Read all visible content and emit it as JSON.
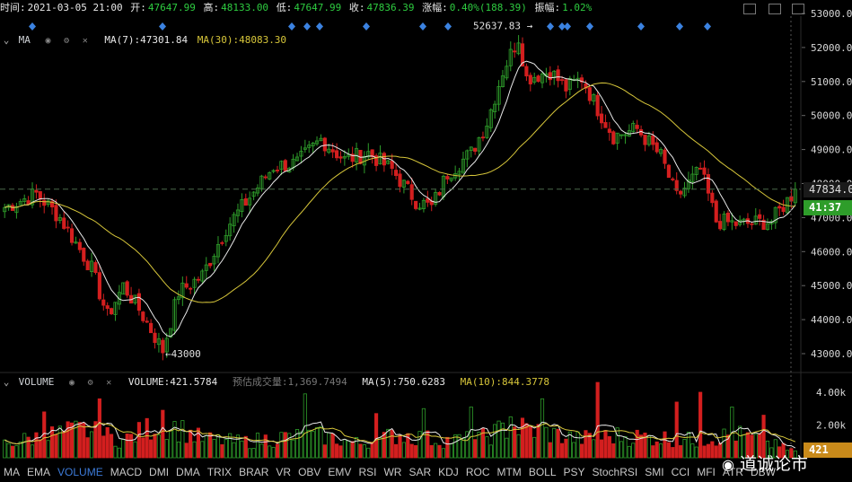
{
  "info": {
    "time_label": "时间:",
    "time": "2021-03-05 21:00",
    "open_label": "开:",
    "open": "47647.99",
    "high_label": "高:",
    "high": "48133.00",
    "low_label": "低:",
    "low": "47647.99",
    "close_label": "收:",
    "close": "47836.39",
    "change_label": "涨幅:",
    "change": "0.40%(188.39)",
    "amplitude_label": "振幅:",
    "amplitude": "1.02%"
  },
  "main_indicator": {
    "name": "MA",
    "ma7_label": "MA(7):47301.84",
    "ma30_label": "MA(30):48083.30"
  },
  "volume_indicator": {
    "name": "VOLUME",
    "value_label": "VOLUME:421.5784",
    "est_label": "预估成交量:1,369.7494",
    "ma5_label": "MA(5):750.6283",
    "ma10_label": "MA(10):844.3778"
  },
  "price_axis": [
    "53000.00",
    "52000.00",
    "51000.00",
    "50000.00",
    "49000.00",
    "48000.00",
    "47000.00",
    "46000.00",
    "45000.00",
    "44000.00",
    "43000.00"
  ],
  "current_price_label": "47834.0",
  "countdown_label": "41:37",
  "volume_axis": [
    "4.00k",
    "2.00k"
  ],
  "current_volume_label": "421",
  "annotations": {
    "high": "52637.83 →",
    "low": "←43000"
  },
  "tabs": [
    "MA",
    "EMA",
    "VOLUME",
    "MACD",
    "DMI",
    "DMA",
    "TRIX",
    "BRAR",
    "VR",
    "OBV",
    "EMV",
    "RSI",
    "WR",
    "SAR",
    "KDJ",
    "ROC",
    "MTM",
    "BOLL",
    "PSY",
    "StochRSI",
    "SMI",
    "CCI",
    "MFI",
    "ATR",
    "DBW"
  ],
  "active_tab": "VOLUME",
  "watermark": "道诚论市",
  "colors": {
    "up": "#2e9d2a",
    "down": "#d31f1f",
    "ma7": "#e8e8e8",
    "ma30": "#d7c63a",
    "ma5": "#e8e8e8",
    "ma10": "#d7c63a",
    "accent": "#3d7bd9",
    "price_badge": "#2e9d2a",
    "vol_badge": "#c98a1a"
  },
  "chart_data": {
    "type": "candlestick",
    "title": "",
    "ylim": [
      42800,
      53300
    ],
    "price_ticks": [
      53000,
      52000,
      51000,
      50000,
      49000,
      48000,
      47000,
      46000,
      45000,
      44000,
      43000
    ],
    "high_marker": 52637.83,
    "low_marker": 43000,
    "last_price": 47834,
    "price_anchors": [
      [
        0,
        47300
      ],
      [
        8,
        47700
      ],
      [
        14,
        47000
      ],
      [
        22,
        45500
      ],
      [
        26,
        44100
      ],
      [
        30,
        45000
      ],
      [
        34,
        44300
      ],
      [
        40,
        43100
      ],
      [
        44,
        44800
      ],
      [
        50,
        45300
      ],
      [
        56,
        46700
      ],
      [
        62,
        47600
      ],
      [
        68,
        48500
      ],
      [
        74,
        48600
      ],
      [
        80,
        49300
      ],
      [
        86,
        48700
      ],
      [
        92,
        48900
      ],
      [
        98,
        48400
      ],
      [
        104,
        47500
      ],
      [
        108,
        47300
      ],
      [
        112,
        48300
      ],
      [
        118,
        48900
      ],
      [
        122,
        49800
      ],
      [
        126,
        51300
      ],
      [
        130,
        52300
      ],
      [
        132,
        51100
      ],
      [
        138,
        51300
      ],
      [
        142,
        50800
      ],
      [
        146,
        51100
      ],
      [
        150,
        50200
      ],
      [
        154,
        49400
      ],
      [
        160,
        49600
      ],
      [
        166,
        48800
      ],
      [
        170,
        47600
      ],
      [
        176,
        48400
      ],
      [
        180,
        46900
      ],
      [
        186,
        46800
      ],
      [
        194,
        46900
      ],
      [
        200,
        47800
      ]
    ],
    "volume_ylim": [
      0,
      5000
    ],
    "volume_ticks": [
      4000,
      2000
    ],
    "volume_anchors": [
      [
        0,
        900
      ],
      [
        10,
        1400
      ],
      [
        20,
        1800
      ],
      [
        30,
        1100
      ],
      [
        40,
        2300
      ],
      [
        50,
        1200
      ],
      [
        60,
        1000
      ],
      [
        70,
        1300
      ],
      [
        80,
        1400
      ],
      [
        90,
        900
      ],
      [
        100,
        1500
      ],
      [
        110,
        1100
      ],
      [
        120,
        1200
      ],
      [
        128,
        2000
      ],
      [
        135,
        1700
      ],
      [
        145,
        1200
      ],
      [
        155,
        1400
      ],
      [
        165,
        1300
      ],
      [
        175,
        1100
      ],
      [
        185,
        1500
      ],
      [
        195,
        800
      ],
      [
        200,
        421
      ]
    ],
    "volume_spikes": [
      [
        10,
        2800
      ],
      [
        24,
        3600
      ],
      [
        40,
        2900
      ],
      [
        76,
        3900
      ],
      [
        94,
        2700
      ],
      [
        106,
        3000
      ],
      [
        118,
        3100
      ],
      [
        128,
        2500
      ],
      [
        136,
        3600
      ],
      [
        150,
        4600
      ],
      [
        170,
        3400
      ],
      [
        176,
        4000
      ],
      [
        184,
        3100
      ],
      [
        192,
        2600
      ]
    ],
    "markers": "diamond-row",
    "num_candles": 201
  }
}
